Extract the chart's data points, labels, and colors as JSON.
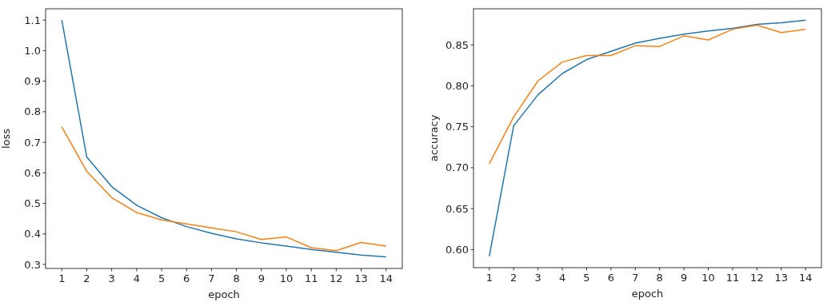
{
  "chart_data": [
    {
      "type": "line",
      "xlabel": "epoch",
      "ylabel": "loss",
      "x": [
        1,
        2,
        3,
        4,
        5,
        6,
        7,
        8,
        9,
        10,
        11,
        12,
        13,
        14
      ],
      "xlim": [
        0.35,
        14.65
      ],
      "xticks": [
        1,
        2,
        3,
        4,
        5,
        6,
        7,
        8,
        9,
        10,
        11,
        12,
        13,
        14
      ],
      "ylim": [
        0.287,
        1.137
      ],
      "yticks": [
        0.3,
        0.4,
        0.5,
        0.6,
        0.7,
        0.8,
        0.9,
        {
          "value": 1,
          "label": "1.0"
        },
        1.1
      ],
      "series": [
        {
          "color": "#1f77b4",
          "values": [
            1.1,
            0.652,
            0.555,
            0.494,
            0.453,
            0.424,
            0.402,
            0.384,
            0.371,
            0.36,
            0.349,
            0.34,
            0.331,
            0.325
          ]
        },
        {
          "color": "#ff7f0e",
          "values": [
            0.75,
            0.605,
            0.519,
            0.47,
            0.446,
            0.433,
            0.42,
            0.407,
            0.382,
            0.39,
            0.355,
            0.345,
            0.372,
            0.36
          ]
        }
      ]
    },
    {
      "type": "line",
      "xlabel": "epoch",
      "ylabel": "accuracy",
      "x": [
        1,
        2,
        3,
        4,
        5,
        6,
        7,
        8,
        9,
        10,
        11,
        12,
        13,
        14
      ],
      "xlim": [
        0.35,
        14.65
      ],
      "xticks": [
        1,
        2,
        3,
        4,
        5,
        6,
        7,
        8,
        9,
        10,
        11,
        12,
        13,
        14
      ],
      "ylim": [
        0.578,
        0.894
      ],
      "yticks": [
        {
          "value": 0.6,
          "label": "0.60"
        },
        0.65,
        {
          "value": 0.7,
          "label": "0.70"
        },
        0.75,
        {
          "value": 0.8,
          "label": "0.80"
        },
        0.85
      ],
      "series": [
        {
          "color": "#1f77b4",
          "values": [
            0.592,
            0.751,
            0.789,
            0.815,
            0.832,
            0.842,
            0.852,
            0.858,
            0.863,
            0.867,
            0.87,
            0.875,
            0.877,
            0.88
          ]
        },
        {
          "color": "#ff7f0e",
          "values": [
            0.705,
            0.762,
            0.806,
            0.829,
            0.837,
            0.837,
            0.849,
            0.848,
            0.861,
            0.856,
            0.869,
            0.874,
            0.865,
            0.869
          ]
        }
      ]
    }
  ]
}
